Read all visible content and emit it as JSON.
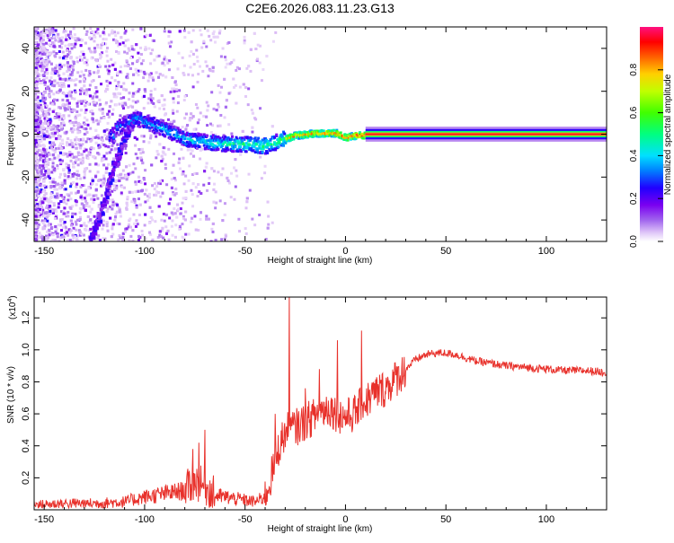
{
  "title": "C2E6.2026.083.11.23.G13",
  "chart_data": [
    {
      "type": "heatmap",
      "name": "spectrogram",
      "xlabel": "Height of straight line (km)",
      "ylabel": "Frequency (Hz)",
      "xlim": [
        -155,
        130
      ],
      "ylim": [
        -50,
        50
      ],
      "xticks": [
        -150,
        -100,
        -50,
        0,
        50,
        100
      ],
      "yticks": [
        -40,
        -20,
        0,
        20,
        40
      ],
      "grid": false,
      "colorbar": {
        "label": "Normalized spectral amplitude",
        "range": [
          0,
          1
        ],
        "ticks": [
          0.0,
          0.2,
          0.4,
          0.6,
          0.8
        ],
        "colormap": [
          "#ffffff",
          "#d9b8f5",
          "#a064ee",
          "#7a00f0",
          "#2000ff",
          "#0080ff",
          "#00e0ff",
          "#00ff80",
          "#40ff00",
          "#c0ff00",
          "#ffd000",
          "#ff6000",
          "#ff0000",
          "#ff1080"
        ]
      },
      "ridge": {
        "description": "dominant frequency trace vs height",
        "points": [
          [
            -115,
            3
          ],
          [
            -105,
            8
          ],
          [
            -100,
            6
          ],
          [
            -90,
            3
          ],
          [
            -80,
            -2
          ],
          [
            -70,
            -3
          ],
          [
            -60,
            -4
          ],
          [
            -50,
            -4
          ],
          [
            -40,
            -5
          ],
          [
            -32,
            -2
          ],
          [
            -25,
            0
          ],
          [
            -15,
            1
          ],
          [
            -5,
            1
          ],
          [
            0,
            -1
          ],
          [
            5,
            0
          ],
          [
            10,
            0
          ],
          [
            20,
            0
          ],
          [
            130,
            0
          ]
        ],
        "steady_from_km": 10
      },
      "descending_trace": {
        "points": [
          [
            -128,
            -50
          ],
          [
            -122,
            -35
          ],
          [
            -116,
            -15
          ],
          [
            -110,
            0
          ],
          [
            -104,
            10
          ]
        ]
      }
    },
    {
      "type": "line",
      "name": "snr",
      "xlabel": "Height of straight line (km)",
      "ylabel": "SNR (10 * v/v)",
      "yscale_label": "(x10",
      "yscale_exp": "4",
      "yscale_close": ")",
      "xlim": [
        -155,
        130
      ],
      "ylim": [
        0,
        1.33
      ],
      "xticks": [
        -150,
        -100,
        -50,
        0,
        50,
        100
      ],
      "yticks": [
        0.2,
        0.4,
        0.6,
        0.8,
        1.0,
        1.2
      ],
      "ytick_labels": [
        "0.2",
        "0.4",
        "0.6",
        "0.8",
        "1.0",
        "1.2"
      ],
      "grid": false,
      "series": [
        {
          "name": "SNR",
          "color": "#e8312b",
          "x": [
            -155,
            -140,
            -125,
            -110,
            -100,
            -90,
            -80,
            -75,
            -70,
            -65,
            -55,
            -45,
            -40,
            -36,
            -33,
            -30,
            -28,
            -24,
            -20,
            -16,
            -12,
            -8,
            -4,
            0,
            4,
            8,
            12,
            16,
            20,
            25,
            30,
            35,
            40,
            45,
            50,
            55,
            60,
            65,
            70,
            75,
            80,
            90,
            100,
            110,
            120,
            130
          ],
          "y": [
            0.03,
            0.04,
            0.04,
            0.05,
            0.08,
            0.1,
            0.12,
            0.18,
            0.14,
            0.09,
            0.07,
            0.05,
            0.08,
            0.25,
            0.4,
            0.48,
            0.5,
            0.52,
            0.55,
            0.58,
            0.62,
            0.64,
            0.6,
            0.58,
            0.6,
            0.65,
            0.7,
            0.74,
            0.76,
            0.82,
            0.88,
            0.94,
            0.97,
            0.98,
            0.98,
            0.97,
            0.95,
            0.93,
            0.92,
            0.91,
            0.9,
            0.89,
            0.88,
            0.87,
            0.87,
            0.86
          ],
          "spikes": [
            [
              -76,
              0.38
            ],
            [
              -73,
              0.42
            ],
            [
              -70,
              0.5
            ],
            [
              -35,
              0.6
            ],
            [
              -28,
              1.33
            ],
            [
              -20,
              0.76
            ],
            [
              -13,
              0.88
            ],
            [
              -4,
              1.06
            ],
            [
              8,
              1.12
            ]
          ]
        }
      ]
    }
  ]
}
